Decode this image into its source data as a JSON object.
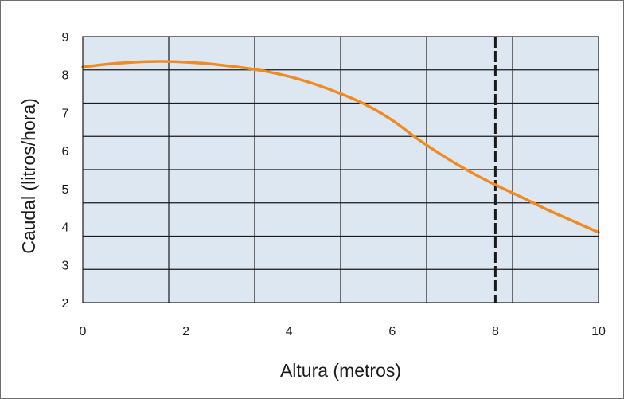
{
  "chart_data": {
    "type": "line",
    "xlabel": "Altura (metros)",
    "ylabel": "Caudal (litros/hora)",
    "xlim": [
      0,
      10
    ],
    "ylim": [
      2,
      9
    ],
    "x_ticks": [
      "0",
      "2",
      "4",
      "6",
      "8",
      "10"
    ],
    "x_tick_values": [
      0,
      2,
      4,
      6,
      8,
      10
    ],
    "y_ticks": [
      "2",
      "3",
      "4",
      "5",
      "6",
      "7",
      "8",
      "9"
    ],
    "y_tick_values": [
      2,
      3,
      4,
      5,
      6,
      7,
      8,
      9
    ],
    "grid": true,
    "background_color": "#dde7f1",
    "grid_color": "#1a1a1a",
    "series": [
      {
        "color": "#f08a24",
        "x": [
          0,
          0.5,
          1.0,
          1.5,
          2.0,
          2.5,
          3.0,
          3.5,
          4.0,
          4.5,
          5.0,
          5.5,
          6.0,
          6.5,
          7.0,
          7.5,
          8.0,
          8.5,
          9.0,
          9.5,
          10.0
        ],
        "y": [
          8.2,
          8.28,
          8.33,
          8.35,
          8.33,
          8.28,
          8.2,
          8.1,
          7.95,
          7.75,
          7.5,
          7.2,
          6.8,
          6.3,
          5.85,
          5.45,
          5.1,
          4.78,
          4.45,
          4.15,
          3.85
        ]
      }
    ],
    "reference_line": {
      "x": 8,
      "style": "dashed",
      "color": "#1a1a1a"
    }
  }
}
